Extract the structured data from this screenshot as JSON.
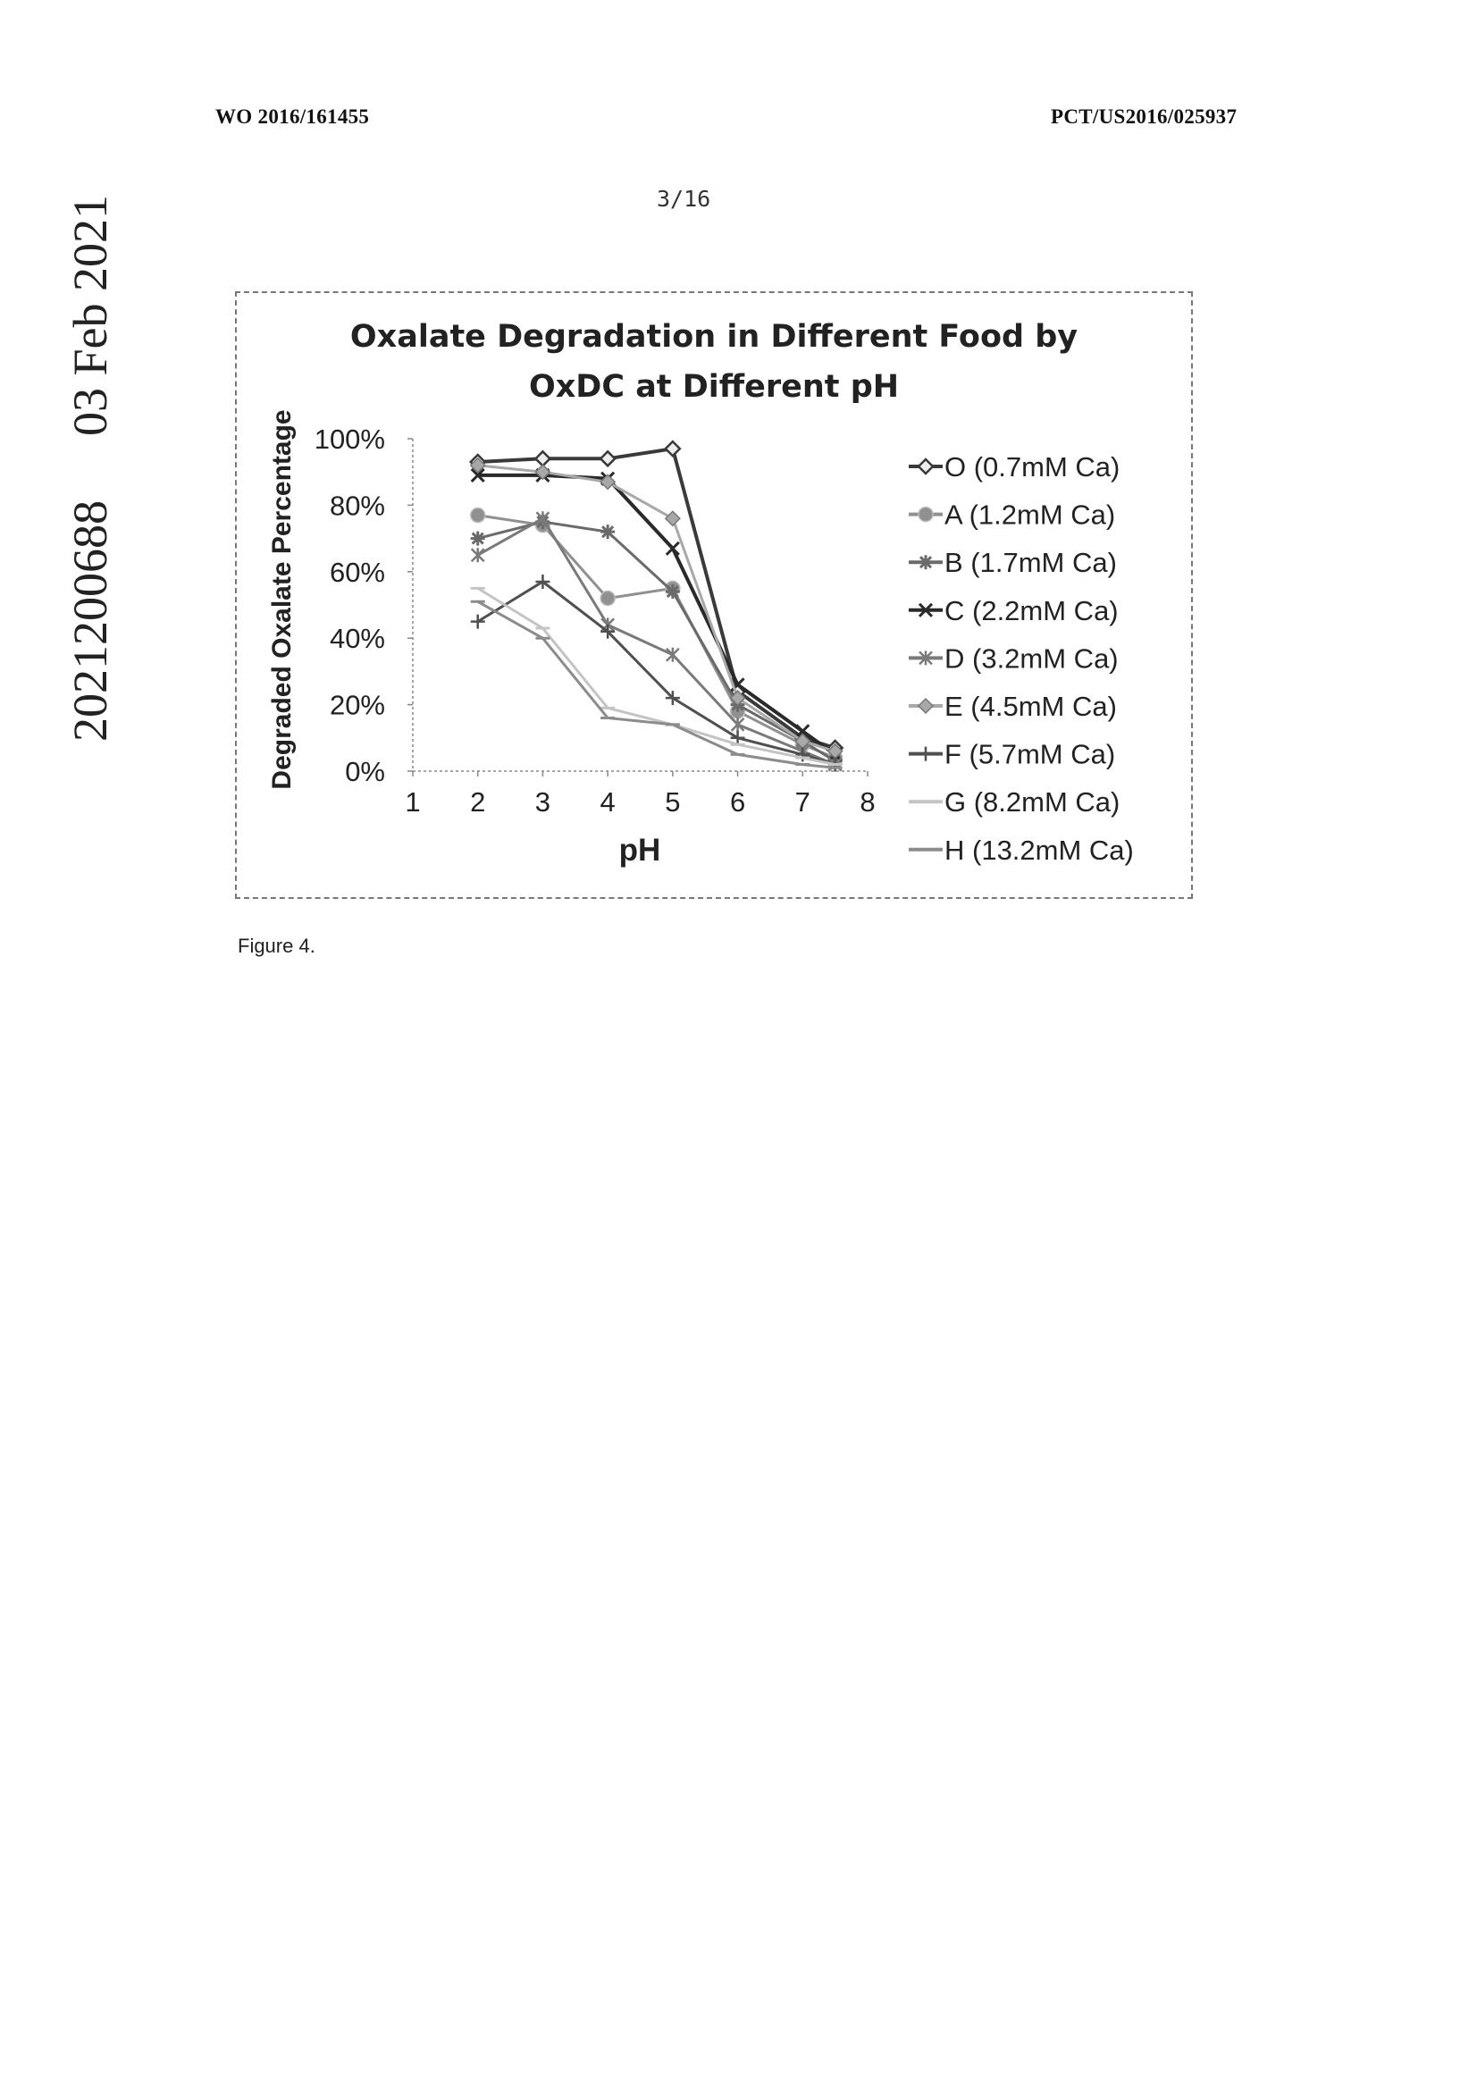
{
  "header": {
    "left": "WO 2016/161455",
    "right": "PCT/US2016/025937"
  },
  "page_number": "3/16",
  "side_stamp": {
    "number": "2021200688",
    "date": "03 Feb 2021"
  },
  "caption": "Figure 4.",
  "chart_data": {
    "type": "line",
    "title": [
      "Oxalate Degradation in Different Food by",
      "OxDC at Different pH"
    ],
    "xlabel": "pH",
    "ylabel": "Degraded Oxalate Percentage",
    "xlim": [
      1,
      8
    ],
    "ylim": [
      0,
      100
    ],
    "x_ticks": [
      "1",
      "2",
      "3",
      "4",
      "5",
      "6",
      "7",
      "8"
    ],
    "y_ticks": [
      "0%",
      "20%",
      "40%",
      "60%",
      "80%",
      "100%"
    ],
    "legend_position": "right",
    "series": [
      {
        "name": "O (0.7mM Ca)",
        "color": "#3a3a3a",
        "marker": "diamond-open",
        "x": [
          2,
          3,
          4,
          5,
          6,
          7,
          7.5
        ],
        "values": [
          93,
          94,
          94,
          97,
          24,
          10,
          7
        ]
      },
      {
        "name": "A (1.2mM Ca)",
        "color": "#909090",
        "marker": "circle",
        "x": [
          2,
          3,
          4,
          5,
          6,
          7,
          7.5
        ],
        "values": [
          77,
          74,
          52,
          55,
          18,
          8,
          4
        ]
      },
      {
        "name": "B (1.7mM Ca)",
        "color": "#6a6a6a",
        "marker": "star",
        "x": [
          2,
          3,
          4,
          5,
          6,
          7,
          7.5
        ],
        "values": [
          70,
          75,
          72,
          54,
          20,
          9,
          3
        ]
      },
      {
        "name": "C (2.2mM Ca)",
        "color": "#2a2a2a",
        "marker": "x",
        "x": [
          2,
          3,
          4,
          5,
          6,
          7,
          7.5
        ],
        "values": [
          89,
          89,
          88,
          67,
          26,
          12,
          5
        ]
      },
      {
        "name": "D (3.2mM Ca)",
        "color": "#7a7a7a",
        "marker": "asterisk",
        "x": [
          2,
          3,
          4,
          5,
          6,
          7,
          7.5
        ],
        "values": [
          65,
          76,
          44,
          35,
          14,
          6,
          2
        ]
      },
      {
        "name": "E (4.5mM Ca)",
        "color": "#a8a8a8",
        "marker": "diamond",
        "x": [
          2,
          3,
          4,
          5,
          6,
          7,
          7.5
        ],
        "values": [
          92,
          90,
          87,
          76,
          22,
          9,
          6
        ]
      },
      {
        "name": "F (5.7mM Ca)",
        "color": "#505050",
        "marker": "plus",
        "x": [
          2,
          3,
          4,
          5,
          6,
          7,
          7.5
        ],
        "values": [
          45,
          57,
          42,
          22,
          10,
          5,
          2
        ]
      },
      {
        "name": "G (8.2mM Ca)",
        "color": "#c4c4c4",
        "marker": "dash",
        "x": [
          2,
          3,
          4,
          5,
          6,
          7,
          7.5
        ],
        "values": [
          55,
          43,
          19,
          14,
          8,
          4,
          2
        ]
      },
      {
        "name": "H (13.2mM Ca)",
        "color": "#8c8c8c",
        "marker": "dash",
        "x": [
          2,
          3,
          4,
          5,
          6,
          7,
          7.5
        ],
        "values": [
          51,
          40,
          16,
          14,
          5,
          2,
          1
        ]
      }
    ]
  }
}
